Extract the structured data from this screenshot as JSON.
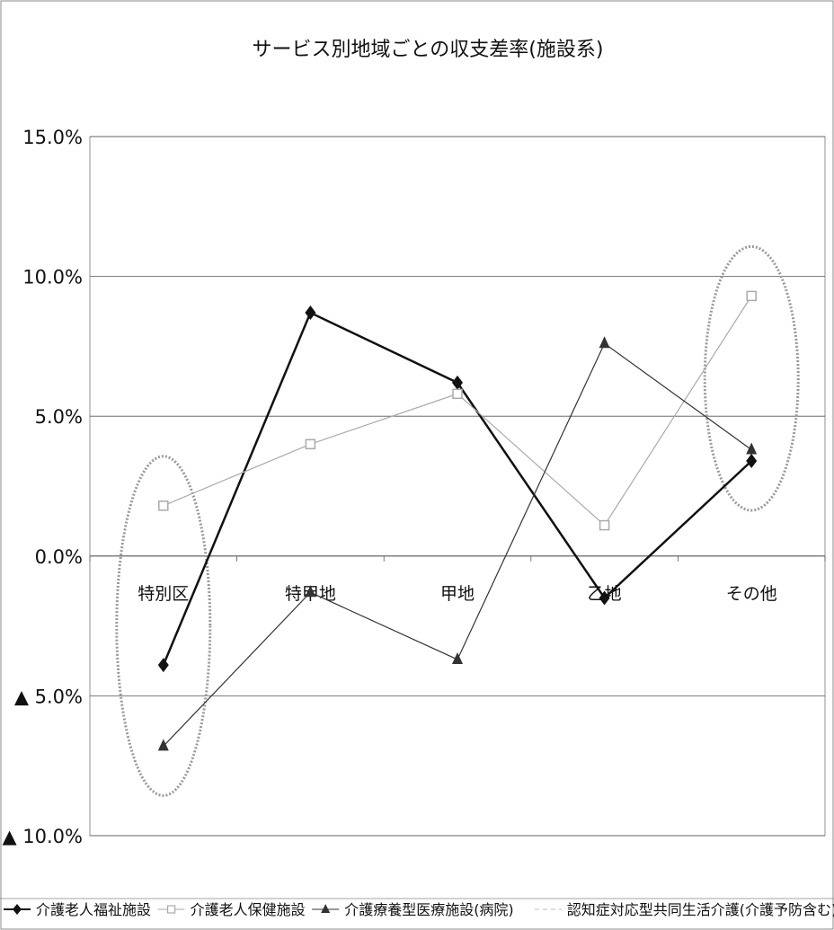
{
  "chart_data": {
    "type": "line",
    "title": "サービス別地域ごとの収支差率(施設系)",
    "xlabel": "",
    "ylabel": "",
    "categories": [
      "特別区",
      "特甲地",
      "甲地",
      "乙地",
      "その他"
    ],
    "ylim": [
      -10,
      15
    ],
    "yticks": [
      15,
      10,
      5,
      0,
      -5,
      -10
    ],
    "ytick_labels": [
      "15.0%",
      "10.0%",
      "5.0%",
      "0.0%",
      "▲ 5.0%",
      "▲ 10.0%"
    ],
    "grid": true,
    "legend_position": "bottom",
    "series": [
      {
        "name": "介護老人福祉施設",
        "values": [
          -3.9,
          8.7,
          6.2,
          -1.5,
          3.4
        ],
        "color": "#111111",
        "marker": "diamond",
        "dash": "solid",
        "width": 2.5
      },
      {
        "name": "介護老人保健施設",
        "values": [
          1.8,
          4.0,
          5.8,
          1.1,
          9.3
        ],
        "color": "#aaaaaa",
        "marker": "square-open",
        "dash": "solid",
        "width": 1.2
      },
      {
        "name": "介護療養型医療施設(病院)",
        "values": [
          -6.8,
          -1.3,
          -3.7,
          7.6,
          3.8
        ],
        "color": "#333333",
        "marker": "triangle",
        "dash": "solid",
        "width": 1.2
      },
      {
        "name": "認知症対応型共同生活介護(介護予防含む)",
        "values": [
          null,
          null,
          null,
          null,
          null
        ],
        "color": "#bbbbbb",
        "marker": "none",
        "dash": "dashed",
        "width": 1.0
      }
    ],
    "highlights": [
      "特別区",
      "その他"
    ]
  }
}
